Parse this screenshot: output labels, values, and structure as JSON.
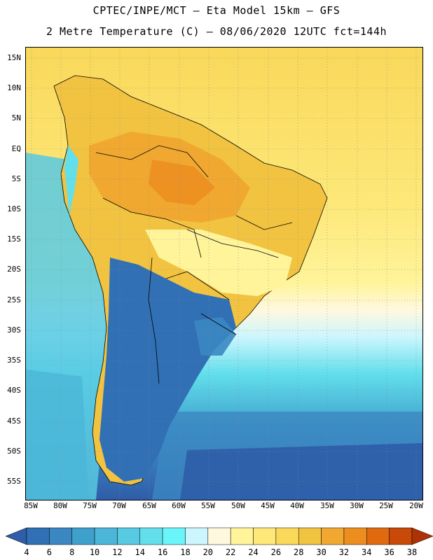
{
  "header": {
    "title_line1": "CPTEC/INPE/MCT –  Eta Model 15km – GFS",
    "title_line2": "2 Metre Temperature (C) – 08/06/2020 12UTC fct=144h"
  },
  "axes": {
    "lat_labels": [
      "15N",
      "10N",
      "5N",
      "EQ",
      "5S",
      "10S",
      "15S",
      "20S",
      "25S",
      "30S",
      "35S",
      "40S",
      "45S",
      "50S",
      "55S"
    ],
    "lon_labels": [
      "85W",
      "80W",
      "75W",
      "70W",
      "65W",
      "60W",
      "55W",
      "50W",
      "45W",
      "40W",
      "35W",
      "30W",
      "25W",
      "20W"
    ],
    "lat_range": [
      17,
      -58
    ],
    "lon_range": [
      -86,
      -19
    ]
  },
  "colorbar": {
    "values": [
      "4",
      "6",
      "8",
      "10",
      "12",
      "14",
      "16",
      "18",
      "20",
      "22",
      "24",
      "26",
      "28",
      "30",
      "32",
      "34",
      "36",
      "38"
    ],
    "colors": [
      "#2f5da8",
      "#3170b4",
      "#3b87c2",
      "#40a0cc",
      "#4bb6d8",
      "#58c9e2",
      "#63dfec",
      "#6af5fb",
      "#ccf6fd",
      "#fff8df",
      "#fff49a",
      "#fde879",
      "#f9d85a",
      "#f1c341",
      "#f0a830",
      "#ec8d20",
      "#e06a10",
      "#c84908",
      "#ad3205"
    ]
  },
  "map": {
    "field": "2 Metre Temperature",
    "units": "C"
  }
}
